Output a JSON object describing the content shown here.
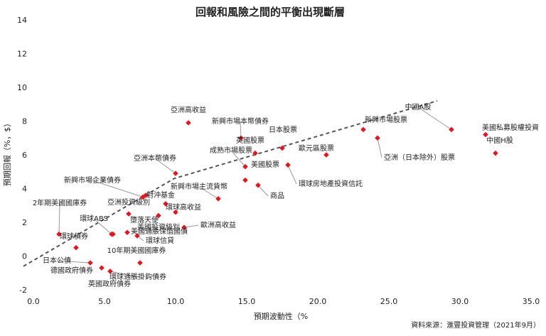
{
  "chart_data": {
    "type": "scatter",
    "title": "回報和風險之間的平衡出現斷層",
    "xlabel": "預期波動性（%",
    "ylabel": "預期回報（%，$）",
    "source": "資料來源：滙豐投資管理（2021年9月）",
    "xlim": [
      0,
      35
    ],
    "ylim": [
      -2,
      14
    ],
    "x_ticks": [
      "0.0",
      "5.0",
      "10.0",
      "15.0",
      "20.0",
      "25.0",
      "30.0",
      "35.0"
    ],
    "y_ticks": [
      "-2",
      "0",
      "2",
      "4",
      "6",
      "8",
      "10",
      "12",
      "14"
    ],
    "marker_color": "#e8141c",
    "trend_line": [
      [
        -0.7,
        -0.6
      ],
      [
        9.9,
        4.6
      ],
      [
        28.4,
        9.2
      ]
    ],
    "points": [
      {
        "name": "亞洲高收益",
        "x": 10.9,
        "y": 7.9
      },
      {
        "name": "新興市場本幣債券",
        "x": 14.6,
        "y": 7.0
      },
      {
        "name": "英國股票",
        "x": 15.6,
        "y": 6.1
      },
      {
        "name": "日本股票",
        "x": 17.5,
        "y": 6.4
      },
      {
        "name": "成熟市場股票",
        "x": 14.9,
        "y": 5.3
      },
      {
        "name": "歐元區股票",
        "x": 20.6,
        "y": 6.0
      },
      {
        "name": "美國股票",
        "x": 14.9,
        "y": 4.5
      },
      {
        "name": "環球房地產投資信託",
        "x": 17.9,
        "y": 5.4
      },
      {
        "name": "商品",
        "x": 15.8,
        "y": 4.2
      },
      {
        "name": "新興市場股票",
        "x": 23.2,
        "y": 7.5
      },
      {
        "name": "亞洲（日本除外）股票",
        "x": 24.2,
        "y": 7.0
      },
      {
        "name": "中國A股",
        "x": 29.4,
        "y": 7.5
      },
      {
        "name": "美國私募股權投資",
        "x": 31.8,
        "y": 7.2
      },
      {
        "name": "中國H股",
        "x": 32.5,
        "y": 6.1
      },
      {
        "name": "亞洲本幣債券",
        "x": 10.0,
        "y": 4.9
      },
      {
        "name": "新興市場企業債券",
        "x": 7.7,
        "y": 3.5
      },
      {
        "name": "新興市場主流貨幣",
        "x": 13.0,
        "y": 3.4
      },
      {
        "name": "對沖基金",
        "x": 7.9,
        "y": 3.6
      },
      {
        "name": "亞洲投資級別",
        "x": 9.3,
        "y": 3.1
      },
      {
        "name": "環球高收益",
        "x": 10.0,
        "y": 2.6
      },
      {
        "name": "歐洲高收益",
        "x": 10.6,
        "y": 1.7
      },
      {
        "name": "2年期美國國庫券",
        "x": 1.8,
        "y": 1.3
      },
      {
        "name": "環球債券",
        "x": 3.0,
        "y": 0.5
      },
      {
        "name": "環球ABS",
        "x": 5.5,
        "y": 1.3
      },
      {
        "name": "墮落天使",
        "x": 6.7,
        "y": 2.5
      },
      {
        "name": "美國通脹保值國債",
        "x": 6.6,
        "y": 1.4
      },
      {
        "name": "美國投資級別",
        "x": 8.8,
        "y": 2.4
      },
      {
        "name": "環球信貸",
        "x": 7.3,
        "y": 1.2
      },
      {
        "name": "10年期美國國庫券",
        "x": 7.5,
        "y": -0.4
      },
      {
        "name": "日本公債",
        "x": 4.0,
        "y": -0.4
      },
      {
        "name": "德國政府債券",
        "x": 4.8,
        "y": -0.7
      },
      {
        "name": "環球通脹掛鈎債券",
        "x": 5.4,
        "y": -0.9
      },
      {
        "name": "英國政府債券",
        "x": 5.6,
        "y": 1.3
      }
    ]
  }
}
